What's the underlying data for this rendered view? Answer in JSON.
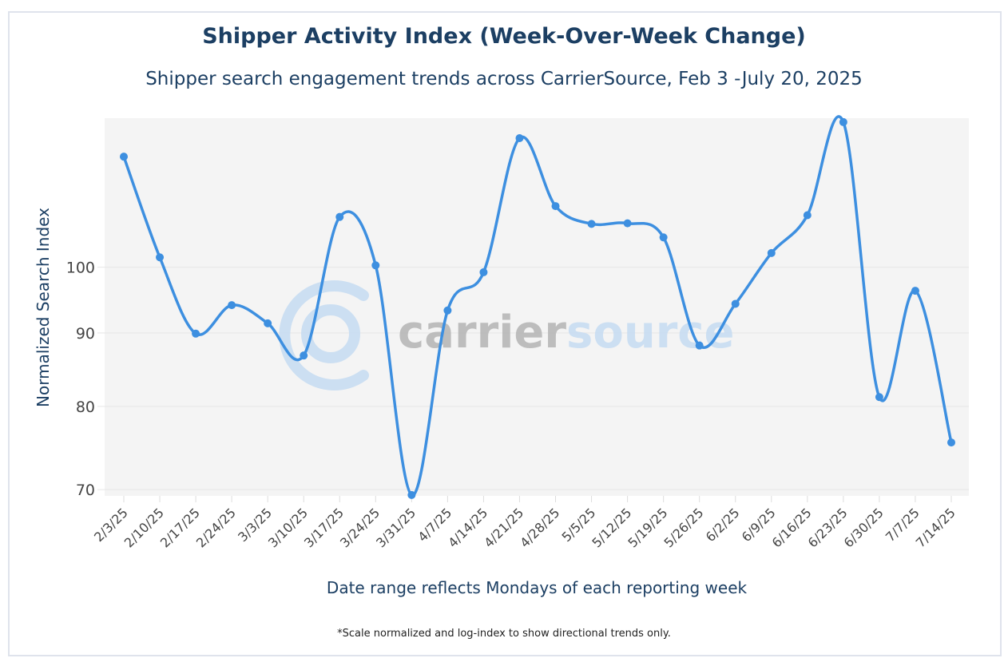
{
  "chart_data": {
    "type": "line",
    "title": "Shipper Activity Index (Week-Over-Week Change)",
    "subtitle": "Shipper search engagement trends across CarrierSource, Feb 3 -July 20, 2025",
    "xlabel": "Date range reflects Mondays of each reporting week",
    "ylabel": "Normalized Search Index",
    "note": "*Scale normalized and log-index to show directional trends only.",
    "y_scale": "log",
    "ylim": [
      69.3,
      127
    ],
    "yticks": [
      70,
      80,
      90,
      100
    ],
    "grid": true,
    "line_color": "#3d8fe0",
    "plot_background": "#f4f4f4",
    "watermark": "carriersource",
    "categories": [
      "2/3/25",
      "2/10/25",
      "2/17/25",
      "2/24/25",
      "3/3/25",
      "3/10/25",
      "3/17/25",
      "3/24/25",
      "3/31/25",
      "4/7/25",
      "4/14/25",
      "4/21/25",
      "4/28/25",
      "5/5/25",
      "5/12/25",
      "5/19/25",
      "5/26/25",
      "6/2/25",
      "6/9/25",
      "6/16/25",
      "6/23/25",
      "6/30/25",
      "7/7/25",
      "7/14/25"
    ],
    "values": [
      119.4,
      101.6,
      89.9,
      94.1,
      91.4,
      86.8,
      108.4,
      100.3,
      69.4,
      93.3,
      99.2,
      123.0,
      110.3,
      107.2,
      107.3,
      104.9,
      88.2,
      94.3,
      102.3,
      108.7,
      126.2,
      81.2,
      96.3,
      75.5
    ]
  }
}
